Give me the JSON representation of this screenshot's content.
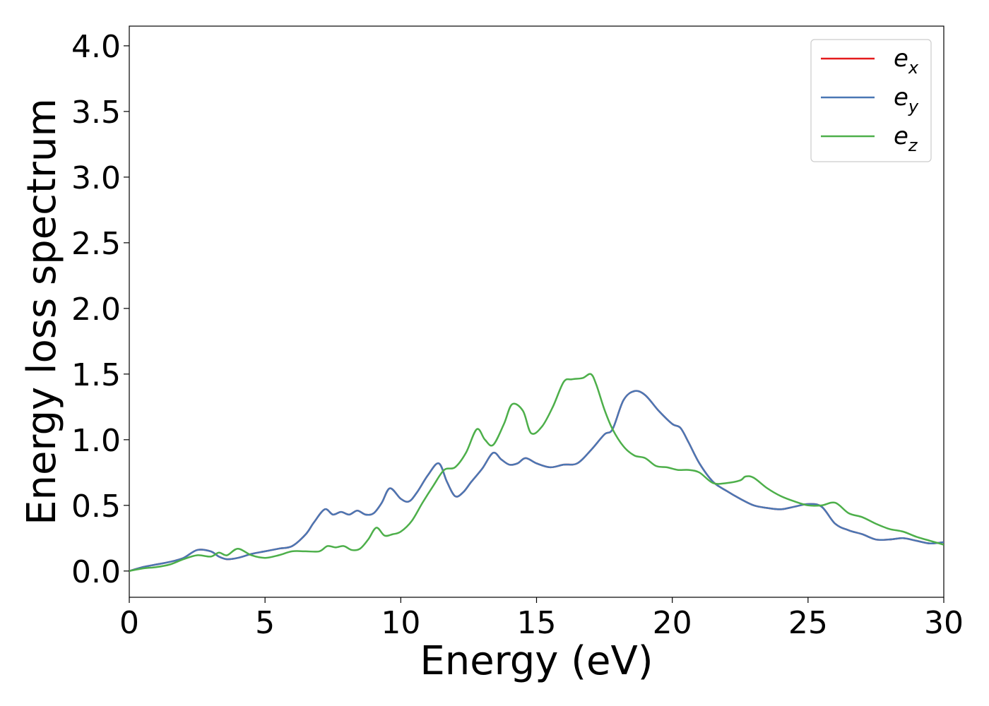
{
  "chart_data": {
    "type": "line",
    "title": "",
    "xlabel": "Energy (eV)",
    "ylabel": "Energy loss spectrum",
    "xlim": [
      0,
      30
    ],
    "ylim": [
      -0.2,
      4.15
    ],
    "xticks": [
      0,
      5,
      10,
      15,
      20,
      25,
      30
    ],
    "xtick_labels": [
      "0",
      "5",
      "10",
      "15",
      "20",
      "25",
      "30"
    ],
    "yticks": [
      0.0,
      0.5,
      1.0,
      1.5,
      2.0,
      2.5,
      3.0,
      3.5,
      4.0
    ],
    "ytick_labels": [
      "0.0",
      "0.5",
      "1.0",
      "1.5",
      "2.0",
      "2.5",
      "3.0",
      "3.5",
      "4.0"
    ],
    "grid": false,
    "legend_position": "top-right",
    "series": [
      {
        "name": "e",
        "subscript": "x",
        "color": "#e41a1c",
        "x": [
          0,
          0.5,
          1,
          1.5,
          2,
          2.5,
          3,
          3.3,
          3.6,
          4,
          4.5,
          5,
          5.5,
          6,
          6.5,
          6.8,
          7.2,
          7.5,
          7.8,
          8.1,
          8.4,
          8.7,
          9,
          9.3,
          9.6,
          10,
          10.3,
          10.6,
          11,
          11.4,
          11.7,
          12,
          12.3,
          12.6,
          13,
          13.4,
          13.7,
          14,
          14.3,
          14.6,
          15,
          15.5,
          16,
          16.5,
          17,
          17.5,
          17.8,
          18.2,
          18.6,
          19,
          19.5,
          20,
          20.3,
          20.6,
          21,
          21.5,
          22,
          22.5,
          23,
          23.5,
          24,
          24.5,
          25,
          25.5,
          26,
          26.5,
          27,
          27.5,
          28,
          28.5,
          29,
          29.5,
          30
        ],
        "values": [
          0.0,
          0.03,
          0.05,
          0.07,
          0.1,
          0.16,
          0.15,
          0.11,
          0.09,
          0.1,
          0.13,
          0.15,
          0.17,
          0.19,
          0.28,
          0.37,
          0.47,
          0.43,
          0.45,
          0.43,
          0.46,
          0.43,
          0.44,
          0.52,
          0.63,
          0.55,
          0.53,
          0.6,
          0.73,
          0.82,
          0.68,
          0.57,
          0.6,
          0.68,
          0.78,
          0.9,
          0.85,
          0.81,
          0.82,
          0.86,
          0.82,
          0.79,
          0.81,
          0.82,
          0.92,
          1.04,
          1.08,
          1.3,
          1.37,
          1.34,
          1.22,
          1.12,
          1.09,
          0.98,
          0.82,
          0.68,
          0.61,
          0.55,
          0.5,
          0.48,
          0.47,
          0.49,
          0.51,
          0.49,
          0.36,
          0.31,
          0.28,
          0.24,
          0.24,
          0.25,
          0.23,
          0.21,
          0.22
        ]
      },
      {
        "name": "e",
        "subscript": "y",
        "color": "#4a77b4",
        "x": [
          0,
          0.5,
          1,
          1.5,
          2,
          2.5,
          3,
          3.3,
          3.6,
          4,
          4.5,
          5,
          5.5,
          6,
          6.5,
          6.8,
          7.2,
          7.5,
          7.8,
          8.1,
          8.4,
          8.7,
          9,
          9.3,
          9.6,
          10,
          10.3,
          10.6,
          11,
          11.4,
          11.7,
          12,
          12.3,
          12.6,
          13,
          13.4,
          13.7,
          14,
          14.3,
          14.6,
          15,
          15.5,
          16,
          16.5,
          17,
          17.5,
          17.8,
          18.2,
          18.6,
          19,
          19.5,
          20,
          20.3,
          20.6,
          21,
          21.5,
          22,
          22.5,
          23,
          23.5,
          24,
          24.5,
          25,
          25.5,
          26,
          26.5,
          27,
          27.5,
          28,
          28.5,
          29,
          29.5,
          30
        ],
        "values": [
          0.0,
          0.03,
          0.05,
          0.07,
          0.1,
          0.16,
          0.15,
          0.11,
          0.09,
          0.1,
          0.13,
          0.15,
          0.17,
          0.19,
          0.28,
          0.37,
          0.47,
          0.43,
          0.45,
          0.43,
          0.46,
          0.43,
          0.44,
          0.52,
          0.63,
          0.55,
          0.53,
          0.6,
          0.73,
          0.82,
          0.68,
          0.57,
          0.6,
          0.68,
          0.78,
          0.9,
          0.85,
          0.81,
          0.82,
          0.86,
          0.82,
          0.79,
          0.81,
          0.82,
          0.92,
          1.04,
          1.08,
          1.3,
          1.37,
          1.34,
          1.22,
          1.12,
          1.09,
          0.98,
          0.82,
          0.68,
          0.61,
          0.55,
          0.5,
          0.48,
          0.47,
          0.49,
          0.51,
          0.49,
          0.36,
          0.31,
          0.28,
          0.24,
          0.24,
          0.25,
          0.23,
          0.21,
          0.22
        ]
      },
      {
        "name": "e",
        "subscript": "z",
        "color": "#4daf4a",
        "x": [
          0,
          0.5,
          1,
          1.5,
          2,
          2.5,
          3,
          3.3,
          3.6,
          4,
          4.5,
          5,
          5.5,
          6,
          6.5,
          7,
          7.3,
          7.6,
          7.9,
          8.2,
          8.5,
          8.8,
          9.1,
          9.4,
          9.7,
          10,
          10.4,
          10.8,
          11.2,
          11.6,
          12,
          12.4,
          12.8,
          13.1,
          13.4,
          13.8,
          14.1,
          14.5,
          14.8,
          15.2,
          15.6,
          16,
          16.3,
          16.7,
          17,
          17.2,
          17.5,
          17.8,
          18.2,
          18.6,
          19,
          19.4,
          19.8,
          20.2,
          20.6,
          21,
          21.5,
          22,
          22.5,
          22.7,
          23,
          23.5,
          24,
          24.5,
          25,
          25.5,
          26,
          26.5,
          27,
          27.5,
          28,
          28.5,
          29,
          29.5,
          30
        ],
        "values": [
          0.0,
          0.02,
          0.03,
          0.05,
          0.09,
          0.12,
          0.11,
          0.14,
          0.12,
          0.17,
          0.12,
          0.1,
          0.12,
          0.15,
          0.15,
          0.15,
          0.19,
          0.18,
          0.19,
          0.16,
          0.17,
          0.24,
          0.33,
          0.27,
          0.28,
          0.3,
          0.38,
          0.52,
          0.65,
          0.77,
          0.79,
          0.9,
          1.08,
          1.0,
          0.96,
          1.12,
          1.27,
          1.22,
          1.05,
          1.1,
          1.25,
          1.44,
          1.46,
          1.47,
          1.5,
          1.42,
          1.23,
          1.08,
          0.95,
          0.88,
          0.86,
          0.8,
          0.79,
          0.77,
          0.77,
          0.75,
          0.67,
          0.67,
          0.69,
          0.72,
          0.71,
          0.63,
          0.57,
          0.53,
          0.5,
          0.5,
          0.52,
          0.44,
          0.41,
          0.36,
          0.32,
          0.3,
          0.26,
          0.23,
          0.2
        ]
      }
    ]
  }
}
